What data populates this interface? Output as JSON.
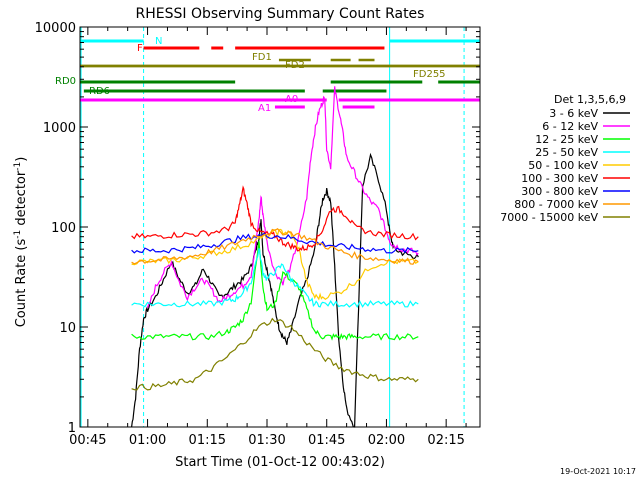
{
  "chart_data": {
    "type": "line",
    "title": "RHESSI Observing Summary Count Rates",
    "xlabel": "Start Time (01-Oct-12 00:43:02)",
    "ylabel": "Count Rate (s",
    "ylabel_sup": "-1",
    "ylabel_mid": " detector",
    "ylabel_end": ")",
    "x_unit": "minutes after 00:00 UT",
    "xlim": [
      43.03,
      143.5
    ],
    "ylim": [
      1,
      10000
    ],
    "y_scale": "log",
    "y_ticks": [
      1,
      10,
      100,
      1000,
      10000
    ],
    "y_tick_labels": [
      "1",
      "10",
      "100",
      "1000",
      "10000"
    ],
    "x_ticks": [
      45,
      60,
      75,
      90,
      105,
      120,
      135
    ],
    "x_tick_labels": [
      "00:45",
      "01:00",
      "01:15",
      "01:30",
      "01:45",
      "02:00",
      "02:15"
    ],
    "legend_position": "right",
    "legend_title": "Det 1,3,5,6,9",
    "date_stamp": "19-Oct-2021 10:17",
    "series": [
      {
        "name": "3 - 6 keV",
        "color": "#000000",
        "points": [
          [
            56,
            1
          ],
          [
            57,
            2
          ],
          [
            58,
            6
          ],
          [
            59,
            12
          ],
          [
            60,
            15
          ],
          [
            62,
            20
          ],
          [
            64,
            30
          ],
          [
            66,
            45
          ],
          [
            68,
            30
          ],
          [
            70,
            22
          ],
          [
            72,
            26
          ],
          [
            74,
            38
          ],
          [
            76,
            28
          ],
          [
            78,
            20
          ],
          [
            80,
            22
          ],
          [
            82,
            26
          ],
          [
            84,
            30
          ],
          [
            86,
            40
          ],
          [
            87,
            55
          ],
          [
            88,
            80
          ],
          [
            88.5,
            120
          ],
          [
            89,
            55
          ],
          [
            90,
            38
          ],
          [
            91,
            25
          ],
          [
            92,
            15
          ],
          [
            93,
            10
          ],
          [
            94,
            8
          ],
          [
            95,
            7
          ],
          [
            96,
            9
          ],
          [
            98,
            18
          ],
          [
            100,
            30
          ],
          [
            102,
            60
          ],
          [
            103,
            110
          ],
          [
            104,
            190
          ],
          [
            105,
            230
          ],
          [
            106,
            180
          ],
          [
            107,
            40
          ],
          [
            108,
            8
          ],
          [
            109,
            3
          ],
          [
            110,
            1.5
          ],
          [
            112,
            1
          ],
          [
            114,
            260
          ],
          [
            116,
            500
          ],
          [
            118,
            300
          ],
          [
            120,
            150
          ],
          [
            121,
            80
          ],
          [
            122,
            60
          ],
          [
            124,
            55
          ],
          [
            126,
            52
          ],
          [
            128,
            50
          ]
        ]
      },
      {
        "name": "6 - 12 keV",
        "color": "#ff00ff",
        "points": [
          [
            60,
            15
          ],
          [
            62,
            25
          ],
          [
            64,
            35
          ],
          [
            66,
            45
          ],
          [
            68,
            28
          ],
          [
            70,
            20
          ],
          [
            72,
            25
          ],
          [
            74,
            30
          ],
          [
            76,
            24
          ],
          [
            78,
            18
          ],
          [
            80,
            20
          ],
          [
            82,
            23
          ],
          [
            84,
            26
          ],
          [
            86,
            33
          ],
          [
            87,
            60
          ],
          [
            88,
            120
          ],
          [
            88.5,
            200
          ],
          [
            89,
            130
          ],
          [
            90,
            70
          ],
          [
            92,
            35
          ],
          [
            94,
            28
          ],
          [
            96,
            40
          ],
          [
            98,
            80
          ],
          [
            100,
            200
          ],
          [
            101,
            500
          ],
          [
            102,
            900
          ],
          [
            103,
            1400
          ],
          [
            104,
            1800
          ],
          [
            104.5,
            2000
          ],
          [
            105,
            600
          ],
          [
            106,
            400
          ],
          [
            107,
            2400
          ],
          [
            108,
            1500
          ],
          [
            109,
            900
          ],
          [
            110,
            500
          ],
          [
            112,
            350
          ],
          [
            114,
            240
          ],
          [
            116,
            180
          ],
          [
            118,
            150
          ],
          [
            120,
            90
          ],
          [
            121,
            70
          ],
          [
            122,
            65
          ],
          [
            124,
            60
          ],
          [
            126,
            58
          ],
          [
            128,
            55
          ]
        ]
      },
      {
        "name": "12 - 25 keV",
        "color": "#00ff00",
        "points": [
          [
            56,
            8
          ],
          [
            60,
            8
          ],
          [
            64,
            8
          ],
          [
            68,
            8
          ],
          [
            72,
            8
          ],
          [
            76,
            8
          ],
          [
            80,
            9
          ],
          [
            82,
            10
          ],
          [
            84,
            12
          ],
          [
            86,
            18
          ],
          [
            88,
            70
          ],
          [
            89,
            25
          ],
          [
            90,
            15
          ],
          [
            92,
            17
          ],
          [
            94,
            35
          ],
          [
            96,
            30
          ],
          [
            98,
            25
          ],
          [
            100,
            15
          ],
          [
            102,
            9
          ],
          [
            104,
            8
          ],
          [
            106,
            8
          ],
          [
            108,
            8
          ],
          [
            110,
            8
          ],
          [
            112,
            8
          ],
          [
            116,
            8
          ],
          [
            120,
            8
          ],
          [
            124,
            8
          ],
          [
            128,
            8
          ]
        ]
      },
      {
        "name": "25 - 50 keV",
        "color": "#00ffff",
        "points": [
          [
            56,
            17
          ],
          [
            60,
            17
          ],
          [
            64,
            17
          ],
          [
            68,
            17
          ],
          [
            72,
            17
          ],
          [
            76,
            17
          ],
          [
            80,
            18
          ],
          [
            82,
            19
          ],
          [
            84,
            22
          ],
          [
            86,
            28
          ],
          [
            88,
            60
          ],
          [
            89,
            35
          ],
          [
            90,
            30
          ],
          [
            92,
            36
          ],
          [
            94,
            42
          ],
          [
            96,
            30
          ],
          [
            98,
            25
          ],
          [
            100,
            20
          ],
          [
            102,
            17
          ],
          [
            104,
            17
          ],
          [
            108,
            17
          ],
          [
            112,
            17
          ],
          [
            116,
            17
          ],
          [
            120,
            17
          ],
          [
            124,
            17
          ],
          [
            128,
            17
          ]
        ]
      },
      {
        "name": "50 - 100 keV",
        "color": "#ffcc00",
        "points": [
          [
            56,
            45
          ],
          [
            60,
            45
          ],
          [
            64,
            46
          ],
          [
            68,
            47
          ],
          [
            72,
            50
          ],
          [
            76,
            54
          ],
          [
            80,
            58
          ],
          [
            84,
            65
          ],
          [
            88,
            75
          ],
          [
            92,
            88
          ],
          [
            94,
            90
          ],
          [
            96,
            85
          ],
          [
            98,
            60
          ],
          [
            100,
            28
          ],
          [
            102,
            20
          ],
          [
            104,
            20
          ],
          [
            108,
            22
          ],
          [
            112,
            28
          ],
          [
            116,
            40
          ],
          [
            120,
            45
          ],
          [
            124,
            45
          ],
          [
            128,
            45
          ]
        ]
      },
      {
        "name": "100 - 300 keV",
        "color": "#ff0000",
        "points": [
          [
            56,
            80
          ],
          [
            60,
            80
          ],
          [
            64,
            82
          ],
          [
            68,
            84
          ],
          [
            72,
            85
          ],
          [
            76,
            88
          ],
          [
            80,
            95
          ],
          [
            82,
            110
          ],
          [
            83,
            160
          ],
          [
            84,
            240
          ],
          [
            85,
            170
          ],
          [
            86,
            110
          ],
          [
            88,
            90
          ],
          [
            90,
            85
          ],
          [
            92,
            82
          ],
          [
            94,
            70
          ],
          [
            96,
            65
          ],
          [
            98,
            60
          ],
          [
            100,
            62
          ],
          [
            102,
            70
          ],
          [
            104,
            95
          ],
          [
            106,
            150
          ],
          [
            108,
            150
          ],
          [
            110,
            130
          ],
          [
            112,
            100
          ],
          [
            116,
            88
          ],
          [
            120,
            84
          ],
          [
            124,
            82
          ],
          [
            128,
            80
          ]
        ]
      },
      {
        "name": "300 - 800 keV",
        "color": "#0000ff",
        "points": [
          [
            56,
            58
          ],
          [
            60,
            58
          ],
          [
            64,
            58
          ],
          [
            68,
            60
          ],
          [
            72,
            62
          ],
          [
            76,
            66
          ],
          [
            80,
            72
          ],
          [
            84,
            78
          ],
          [
            88,
            82
          ],
          [
            92,
            82
          ],
          [
            96,
            78
          ],
          [
            100,
            72
          ],
          [
            104,
            68
          ],
          [
            108,
            64
          ],
          [
            112,
            62
          ],
          [
            116,
            60
          ],
          [
            120,
            58
          ],
          [
            124,
            58
          ],
          [
            128,
            58
          ]
        ]
      },
      {
        "name": "800 - 7000 keV",
        "color": "#ff9900",
        "points": [
          [
            56,
            45
          ],
          [
            60,
            46
          ],
          [
            64,
            47
          ],
          [
            68,
            49
          ],
          [
            72,
            52
          ],
          [
            76,
            57
          ],
          [
            80,
            64
          ],
          [
            84,
            74
          ],
          [
            88,
            84
          ],
          [
            92,
            90
          ],
          [
            96,
            88
          ],
          [
            100,
            78
          ],
          [
            104,
            66
          ],
          [
            108,
            58
          ],
          [
            112,
            52
          ],
          [
            116,
            49
          ],
          [
            120,
            47
          ],
          [
            124,
            46
          ],
          [
            128,
            45
          ]
        ]
      },
      {
        "name": "7000 - 15000 keV",
        "color": "#808000",
        "points": [
          [
            56,
            2.5
          ],
          [
            60,
            2.5
          ],
          [
            64,
            2.6
          ],
          [
            68,
            2.8
          ],
          [
            72,
            3
          ],
          [
            76,
            3.8
          ],
          [
            80,
            5
          ],
          [
            84,
            7
          ],
          [
            88,
            10
          ],
          [
            92,
            12
          ],
          [
            96,
            10
          ],
          [
            100,
            7
          ],
          [
            104,
            5
          ],
          [
            108,
            4
          ],
          [
            112,
            3.5
          ],
          [
            116,
            3.2
          ],
          [
            120,
            3
          ],
          [
            124,
            3
          ],
          [
            128,
            3
          ]
        ]
      }
    ],
    "flag_labels": [
      {
        "text": "N",
        "color": "#00ffff",
        "y_label": "N",
        "segments": [
          [
            43.03,
            59
          ],
          [
            120.8,
            143.5
          ]
        ]
      },
      {
        "text": "F",
        "color": "#ff0000",
        "y_label": "F",
        "segments": [
          [
            59,
            73
          ],
          [
            76,
            79
          ],
          [
            82,
            119.5
          ]
        ]
      },
      {
        "text": "FD1",
        "color": "#808000",
        "y_label": "FD1",
        "segments": [
          [
            93,
            101
          ],
          [
            106,
            111
          ],
          [
            113,
            117
          ]
        ]
      },
      {
        "text": "FD2",
        "color": "#808000",
        "y_label": "FD2",
        "segments": [
          [
            43.03,
            143.5
          ]
        ]
      },
      {
        "text": "FD255",
        "color": "#808000",
        "y_label": "FD255",
        "segments": [
          [
            43.03,
            143.5
          ]
        ]
      },
      {
        "text": "RD0",
        "color": "#008000",
        "y_label": "RD0",
        "segments": [
          [
            43.03,
            82
          ],
          [
            106,
            129
          ],
          [
            133,
            143.5
          ]
        ]
      },
      {
        "text": "RD6",
        "color": "#008000",
        "y_label": "RD6",
        "segments": [
          [
            44,
            99.5
          ],
          [
            104,
            120
          ]
        ]
      },
      {
        "text": "A0",
        "color": "#ff00ff",
        "y_label": "A0",
        "segments": [
          [
            43.03,
            105
          ],
          [
            108,
            143.5
          ]
        ]
      },
      {
        "text": "A1",
        "color": "#ff00ff",
        "y_label": "A1",
        "segments": [
          [
            92,
            99.5
          ],
          [
            109,
            117
          ]
        ]
      }
    ],
    "vlines": [
      {
        "x": 59,
        "color": "#00ffff",
        "style": "dashed"
      },
      {
        "x": 120.8,
        "color": "#00ffff",
        "style": "solid"
      },
      {
        "x": 139.5,
        "color": "#00ffff",
        "style": "dashed"
      },
      {
        "x": 43.3,
        "color": "#00ffff",
        "style": "solid"
      }
    ]
  }
}
